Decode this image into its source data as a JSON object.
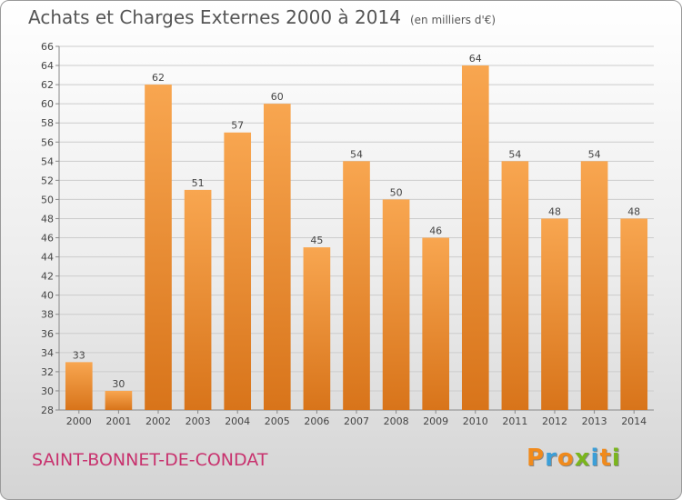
{
  "header": {
    "title": "Achats et Charges Externes 2000 à 2014",
    "subtitle": "(en milliers d'€)"
  },
  "footer": {
    "commune": "SAINT-BONNET-DE-CONDAT",
    "logo": "Proxiti",
    "logo_letters": [
      {
        "ch": "P",
        "color": "#f08a1c"
      },
      {
        "ch": "r",
        "color": "#3c9fd8"
      },
      {
        "ch": "o",
        "color": "#f08a1c"
      },
      {
        "ch": "x",
        "color": "#7ab51d"
      },
      {
        "ch": "i",
        "color": "#3c9fd8"
      },
      {
        "ch": "t",
        "color": "#f08a1c"
      },
      {
        "ch": "i",
        "color": "#7ab51d"
      }
    ]
  },
  "colors": {
    "bar_top": "#f8a650",
    "bar_bottom": "#d8741a",
    "grid": "#cccccc",
    "axis_text": "#444444"
  },
  "chart_data": {
    "type": "bar",
    "categories": [
      "2000",
      "2001",
      "2002",
      "2003",
      "2004",
      "2005",
      "2006",
      "2007",
      "2008",
      "2009",
      "2010",
      "2011",
      "2012",
      "2013",
      "2014"
    ],
    "values": [
      33,
      30,
      62,
      51,
      57,
      60,
      45,
      54,
      50,
      46,
      64,
      54,
      48,
      54,
      48
    ],
    "ylim": [
      28,
      66
    ],
    "ytick_step": 2,
    "grid": true,
    "data_labels": true
  }
}
